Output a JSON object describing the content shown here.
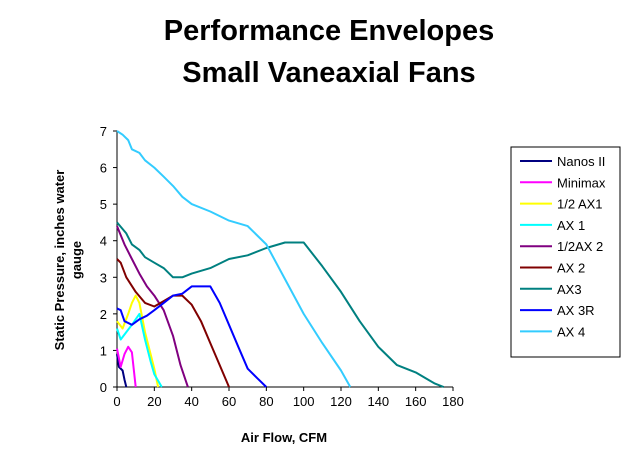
{
  "chart_data": {
    "type": "line",
    "title": [
      "Performance Envelopes",
      "Small Vaneaxial Fans"
    ],
    "xlabel": "Air Flow, CFM",
    "ylabel": [
      "Static Pressure, inches water",
      "gauge"
    ],
    "xlim": [
      0,
      180
    ],
    "ylim": [
      0,
      7
    ],
    "xticks": [
      0,
      20,
      40,
      60,
      80,
      100,
      120,
      140,
      160,
      180
    ],
    "yticks": [
      0,
      1,
      2,
      3,
      4,
      5,
      6,
      7
    ],
    "grid": false,
    "legend_position": "right",
    "series": [
      {
        "name": "Nanos II",
        "color": "#000080",
        "points": [
          [
            0,
            0.9
          ],
          [
            1,
            0.55
          ],
          [
            3,
            0.45
          ],
          [
            4,
            0.2
          ],
          [
            5,
            0
          ]
        ]
      },
      {
        "name": "Minimax",
        "color": "#FF00FF",
        "points": [
          [
            0,
            1.05
          ],
          [
            2,
            0.55
          ],
          [
            4,
            0.9
          ],
          [
            6,
            1.1
          ],
          [
            8,
            0.95
          ],
          [
            10,
            0
          ]
        ]
      },
      {
        "name": "1/2 AX1",
        "color": "#FFFF00",
        "points": [
          [
            0,
            1.8
          ],
          [
            3,
            1.6
          ],
          [
            6,
            2.0
          ],
          [
            8,
            2.3
          ],
          [
            10,
            2.5
          ],
          [
            12,
            2.3
          ],
          [
            15,
            1.5
          ],
          [
            18,
            0.9
          ],
          [
            20,
            0.5
          ],
          [
            22,
            0
          ]
        ]
      },
      {
        "name": "AX 1",
        "color": "#00FFFF",
        "points": [
          [
            0,
            1.6
          ],
          [
            2,
            1.3
          ],
          [
            5,
            1.5
          ],
          [
            8,
            1.7
          ],
          [
            12,
            2.0
          ],
          [
            15,
            1.3
          ],
          [
            18,
            0.7
          ],
          [
            20,
            0.35
          ],
          [
            24,
            0
          ]
        ]
      },
      {
        "name": "1/2AX 2",
        "color": "#800080",
        "points": [
          [
            0,
            4.4
          ],
          [
            4,
            3.9
          ],
          [
            8,
            3.5
          ],
          [
            12,
            3.1
          ],
          [
            16,
            2.75
          ],
          [
            20,
            2.5
          ],
          [
            25,
            2.1
          ],
          [
            30,
            1.4
          ],
          [
            34,
            0.6
          ],
          [
            38,
            0
          ]
        ]
      },
      {
        "name": "AX 2",
        "color": "#800000",
        "points": [
          [
            0,
            3.5
          ],
          [
            2,
            3.4
          ],
          [
            5,
            3.0
          ],
          [
            10,
            2.6
          ],
          [
            15,
            2.3
          ],
          [
            20,
            2.2
          ],
          [
            25,
            2.35
          ],
          [
            30,
            2.5
          ],
          [
            35,
            2.5
          ],
          [
            40,
            2.25
          ],
          [
            45,
            1.8
          ],
          [
            50,
            1.2
          ],
          [
            55,
            0.6
          ],
          [
            60,
            0
          ]
        ]
      },
      {
        "name": "AX3",
        "color": "#008080",
        "points": [
          [
            0,
            4.5
          ],
          [
            5,
            4.2
          ],
          [
            8,
            3.9
          ],
          [
            12,
            3.75
          ],
          [
            15,
            3.55
          ],
          [
            20,
            3.4
          ],
          [
            25,
            3.25
          ],
          [
            30,
            3.0
          ],
          [
            35,
            3.0
          ],
          [
            40,
            3.1
          ],
          [
            50,
            3.25
          ],
          [
            60,
            3.5
          ],
          [
            70,
            3.6
          ],
          [
            80,
            3.8
          ],
          [
            90,
            3.95
          ],
          [
            100,
            3.95
          ],
          [
            110,
            3.3
          ],
          [
            120,
            2.6
          ],
          [
            130,
            1.8
          ],
          [
            140,
            1.1
          ],
          [
            150,
            0.6
          ],
          [
            160,
            0.4
          ],
          [
            170,
            0.1
          ],
          [
            175,
            0
          ]
        ]
      },
      {
        "name": "AX 3R",
        "color": "#0000FF",
        "points": [
          [
            0,
            2.15
          ],
          [
            2,
            2.1
          ],
          [
            4,
            1.8
          ],
          [
            8,
            1.7
          ],
          [
            12,
            1.85
          ],
          [
            16,
            1.95
          ],
          [
            20,
            2.1
          ],
          [
            25,
            2.3
          ],
          [
            30,
            2.5
          ],
          [
            35,
            2.55
          ],
          [
            40,
            2.75
          ],
          [
            45,
            2.75
          ],
          [
            50,
            2.75
          ],
          [
            55,
            2.3
          ],
          [
            60,
            1.7
          ],
          [
            65,
            1.1
          ],
          [
            70,
            0.5
          ],
          [
            75,
            0.25
          ],
          [
            80,
            0
          ]
        ]
      },
      {
        "name": "AX 4",
        "color": "#33CCFF",
        "points": [
          [
            0,
            7.0
          ],
          [
            3,
            6.9
          ],
          [
            6,
            6.75
          ],
          [
            8,
            6.5
          ],
          [
            12,
            6.4
          ],
          [
            15,
            6.2
          ],
          [
            20,
            6.0
          ],
          [
            25,
            5.75
          ],
          [
            30,
            5.5
          ],
          [
            35,
            5.2
          ],
          [
            40,
            5.0
          ],
          [
            50,
            4.8
          ],
          [
            60,
            4.55
          ],
          [
            70,
            4.4
          ],
          [
            80,
            3.9
          ],
          [
            90,
            2.95
          ],
          [
            100,
            2.0
          ],
          [
            110,
            1.2
          ],
          [
            120,
            0.45
          ],
          [
            125,
            0
          ]
        ]
      }
    ]
  }
}
